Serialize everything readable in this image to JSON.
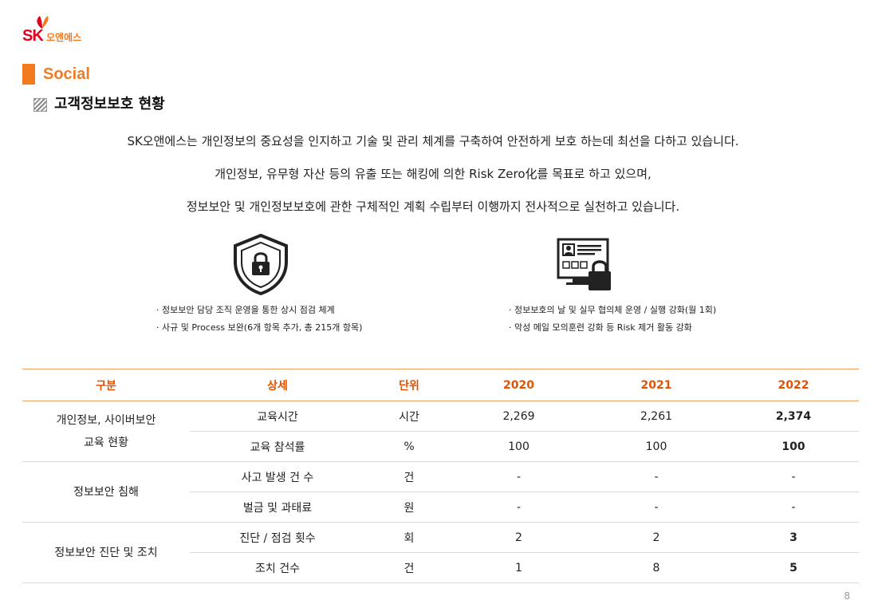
{
  "logo": {
    "brand": "SK",
    "company": "오앤에스"
  },
  "section": {
    "title": "Social"
  },
  "subsection": {
    "title": "고객정보보호 현황"
  },
  "intro": [
    "SK오앤에스는 개인정보의 중요성을 인지하고 기술 및 관리 체계를 구축하여 안전하게 보호 하는데 최선을 다하고 있습니다.",
    "개인정보, 유무형 자산 등의 유출 또는 해킹에 의한 Risk Zero化를 목표로 하고 있으며,",
    "정보보안 및 개인정보보호에 관한 구체적인 계획 수립부터 이행까지 전사적으로 실천하고 있습니다."
  ],
  "icons": {
    "left": "shield-lock-icon",
    "right": "monitor-lock-icon"
  },
  "bullets_left": [
    "· 정보보안 담당 조직 운영을 통한 상시 점검 체계",
    "· 사규 및 Process 보완(6개 항목 추가, 총 215개 항목)"
  ],
  "bullets_right": [
    "· 정보보호의 날 및 실무 협의체 운영 / 실행 강화(월 1회)",
    "· 악성 메일 모의훈련 강화 등 Risk 제거 활동 강화"
  ],
  "table": {
    "headers": [
      "구분",
      "상세",
      "단위",
      "2020",
      "2021",
      "2022"
    ],
    "groups": [
      {
        "name": "개인정보, 사이버보안\n교육 현황",
        "rows": [
          {
            "detail": "교육시간",
            "unit": "시간",
            "y2020": "2,269",
            "y2021": "2,261",
            "y2022": "2,374"
          },
          {
            "detail": "교육 참석률",
            "unit": "%",
            "y2020": "100",
            "y2021": "100",
            "y2022": "100"
          }
        ]
      },
      {
        "name": "정보보안 침해",
        "rows": [
          {
            "detail": "사고 발생 건 수",
            "unit": "건",
            "y2020": "-",
            "y2021": "-",
            "y2022": "-"
          },
          {
            "detail": "벌금 및 과태료",
            "unit": "원",
            "y2020": "-",
            "y2021": "-",
            "y2022": "-"
          }
        ]
      },
      {
        "name": "정보보안 진단 및 조치",
        "rows": [
          {
            "detail": "진단 / 점검 횟수",
            "unit": "회",
            "y2020": "2",
            "y2021": "2",
            "y2022": "3"
          },
          {
            "detail": "조치 건수",
            "unit": "건",
            "y2020": "1",
            "y2021": "8",
            "y2022": "5"
          }
        ]
      }
    ]
  },
  "page_number": "8",
  "colors": {
    "accent": "#f47a20",
    "brand_red": "#e3001b",
    "header_text": "#e65100"
  }
}
